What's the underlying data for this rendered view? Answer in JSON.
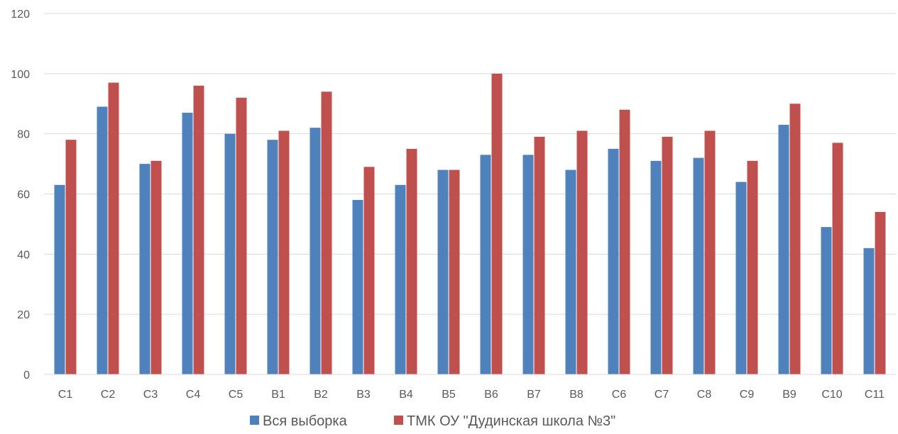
{
  "chart_data": {
    "type": "bar",
    "categories": [
      "C1",
      "C2",
      "C3",
      "C4",
      "C5",
      "B1",
      "B2",
      "B3",
      "B4",
      "B5",
      "B6",
      "B7",
      "B8",
      "C6",
      "C7",
      "C8",
      "C9",
      "B9",
      "C10",
      "C11"
    ],
    "series": [
      {
        "name": "Вся выборка",
        "color": "#4F81BD",
        "values": [
          63,
          89,
          70,
          87,
          80,
          78,
          82,
          58,
          63,
          68,
          73,
          73,
          68,
          75,
          71,
          72,
          64,
          83,
          49,
          42
        ]
      },
      {
        "name": "ТМК ОУ \"Дудинская школа №3\"",
        "color": "#C0504D",
        "values": [
          78,
          97,
          71,
          96,
          92,
          81,
          94,
          69,
          75,
          68,
          100,
          79,
          81,
          88,
          79,
          81,
          71,
          90,
          77,
          54
        ]
      }
    ],
    "ylim": [
      0,
      120
    ],
    "yticks": [
      0,
      20,
      40,
      60,
      80,
      100,
      120
    ],
    "grid": true,
    "legend_position": "bottom",
    "gridline_color": "#D9D9D9"
  }
}
